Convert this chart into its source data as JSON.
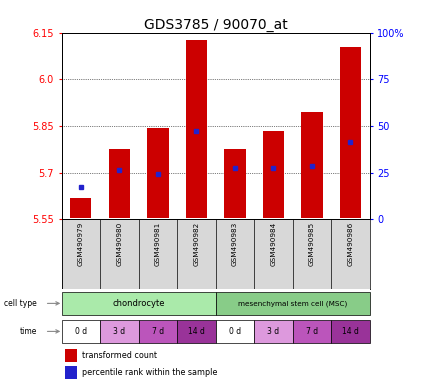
{
  "title": "GDS3785 / 90070_at",
  "samples": [
    "GSM490979",
    "GSM490980",
    "GSM490981",
    "GSM490982",
    "GSM490983",
    "GSM490984",
    "GSM490985",
    "GSM490986"
  ],
  "bar_tops": [
    5.62,
    5.775,
    5.845,
    6.125,
    5.775,
    5.835,
    5.895,
    6.105
  ],
  "bar_bottom": 5.555,
  "blue_values": [
    5.655,
    5.71,
    5.695,
    5.835,
    5.715,
    5.715,
    5.72,
    5.8
  ],
  "ylim_left": [
    5.55,
    6.15
  ],
  "yticks_left": [
    5.55,
    5.7,
    5.85,
    6.0,
    6.15
  ],
  "ylim_right": [
    0,
    100
  ],
  "yticks_right": [
    0,
    25,
    50,
    75,
    100
  ],
  "bar_color": "#cc0000",
  "blue_color": "#2222cc",
  "times": [
    "0 d",
    "3 d",
    "7 d",
    "14 d",
    "0 d",
    "3 d",
    "7 d",
    "14 d"
  ],
  "time_colors": [
    "#ffffff",
    "#dd99dd",
    "#bb55bb",
    "#993399",
    "#ffffff",
    "#dd99dd",
    "#bb55bb",
    "#993399"
  ],
  "chondrocyte_color": "#aaeaaa",
  "msc_color": "#88cc88",
  "sample_bg": "#d8d8d8",
  "plot_bg": "#ffffff"
}
